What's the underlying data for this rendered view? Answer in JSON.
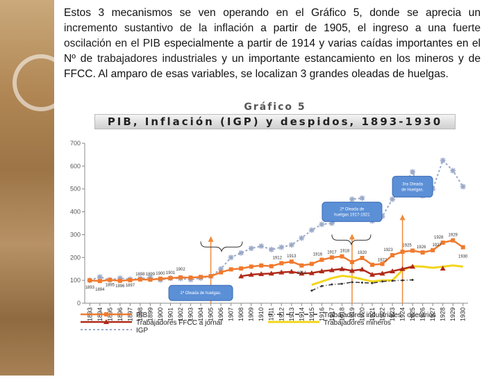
{
  "paragraph": {
    "p1": "Estos 3 mecanismos se ven operando en el Gráfico 5, donde se aprecia un ",
    "link1": "incremento sustantivo de la inflación",
    "p2": " a partir de 1905, el ingreso a una ",
    "link2": "fuerte oscilación en el PIB",
    "p3": " especialmente a partir de 1914  y varias caídas importantes en el Nº de ",
    "link3": "trabajadores industriales",
    "p4": " y un importante estancamiento en los mineros y de FFCC. Al amparo de esas variables, se localizan 3 grandes oleadas de huelgas."
  },
  "chart_data": {
    "type": "line",
    "title": "Gráfico 5",
    "subtitle": "PIB, Inflación (IGP) y despidos, 1893-1930",
    "xlabel": "",
    "ylabel": "",
    "ylim": [
      0,
      700
    ],
    "yticks": [
      0,
      100,
      200,
      300,
      400,
      500,
      600,
      700
    ],
    "categories": [
      "1893",
      "1894",
      "1895",
      "1896",
      "1897",
      "1898",
      "1899",
      "1900",
      "1901",
      "1902",
      "1903",
      "1904",
      "1905",
      "1906",
      "1907",
      "1908",
      "1909",
      "1910",
      "1911",
      "1912",
      "1913",
      "1914",
      "1915",
      "1916",
      "1917",
      "1918",
      "1919",
      "1920",
      "1921",
      "1922",
      "1923",
      "1924",
      "1925",
      "1926",
      "1927",
      "1928",
      "1929",
      "1930"
    ],
    "grid": false,
    "series": [
      {
        "name": "PIB",
        "color": "#f07a2e",
        "values": [
          100,
          97,
          102,
          98,
          101,
          104,
          103,
          107,
          110,
          113,
          112,
          115,
          118,
          135,
          148,
          152,
          160,
          165,
          162,
          175,
          182,
          165,
          172,
          190,
          200,
          205,
          180,
          198,
          168,
          172,
          210,
          225,
          230,
          222,
          232,
          265,
          275,
          245
        ]
      },
      {
        "name": "Trabajadores FFCC a jornal",
        "color": "#b02a18",
        "values": [
          null,
          null,
          null,
          null,
          null,
          null,
          null,
          null,
          null,
          null,
          null,
          null,
          null,
          null,
          null,
          118,
          125,
          128,
          130,
          135,
          138,
          130,
          132,
          140,
          145,
          150,
          142,
          148,
          125,
          130,
          140,
          150,
          160,
          null,
          null,
          152,
          null,
          null
        ]
      },
      {
        "name": "IGP",
        "color": "#9aa8c8",
        "values": [
          100,
          115,
          102,
          110,
          105,
          108,
          112,
          102,
          109,
          108,
          103,
          110,
          118,
          150,
          200,
          220,
          240,
          250,
          235,
          245,
          255,
          285,
          320,
          345,
          350,
          375,
          455,
          460,
          360,
          380,
          455,
          510,
          575,
          470,
          500,
          625,
          580,
          510
        ]
      },
      {
        "name": "Trabajadores industriales . operarios",
        "color": "#333333",
        "values": [
          null,
          null,
          null,
          null,
          null,
          null,
          null,
          null,
          null,
          null,
          null,
          null,
          null,
          null,
          null,
          null,
          null,
          null,
          null,
          null,
          null,
          null,
          55,
          75,
          82,
          85,
          92,
          90,
          88,
          95,
          98,
          100,
          102,
          null,
          null,
          null,
          null,
          null
        ]
      },
      {
        "name": "Trabajadores mineros",
        "color": "#f2d51c",
        "values": [
          null,
          null,
          null,
          null,
          null,
          null,
          null,
          null,
          null,
          null,
          null,
          null,
          null,
          null,
          null,
          null,
          null,
          null,
          null,
          null,
          null,
          null,
          80,
          95,
          110,
          120,
          115,
          105,
          95,
          100,
          100,
          145,
          162,
          160,
          155,
          160,
          165,
          160
        ]
      }
    ],
    "point_labels": [
      {
        "x": "1893",
        "y": 100,
        "text": "1893",
        "dx": 0,
        "dy": 12
      },
      {
        "x": "1894",
        "y": 97,
        "text": "1894",
        "dx": 0,
        "dy": 14
      },
      {
        "x": "1895",
        "y": 102,
        "text": "1895",
        "dx": 0,
        "dy": 9
      },
      {
        "x": "1896",
        "y": 98,
        "text": "1896",
        "dx": 0,
        "dy": 9
      },
      {
        "x": "1897",
        "y": 101,
        "text": "1897",
        "dx": 0,
        "dy": 9
      },
      {
        "x": "1898",
        "y": 104,
        "text": "1898",
        "dx": 0,
        "dy": -6
      },
      {
        "x": "1899",
        "y": 103,
        "text": "1899",
        "dx": 0,
        "dy": -6
      },
      {
        "x": "1900",
        "y": 107,
        "text": "1900",
        "dx": 0,
        "dy": -6
      },
      {
        "x": "1901",
        "y": 110,
        "text": "1901",
        "dx": 0,
        "dy": -6
      },
      {
        "x": "1902",
        "y": 113,
        "text": "1902",
        "dx": 0,
        "dy": -10
      },
      {
        "x": "1912",
        "y": 175,
        "text": "1912",
        "dx": -6,
        "dy": -6
      },
      {
        "x": "1913",
        "y": 182,
        "text": "1913",
        "dx": 0,
        "dy": -6
      },
      {
        "x": "1914",
        "y": 165,
        "text": "1914",
        "dx": 0,
        "dy": 12
      },
      {
        "x": "1916",
        "y": 190,
        "text": "1916",
        "dx": -6,
        "dy": -6
      },
      {
        "x": "1917",
        "y": 200,
        "text": "1917",
        "dx": 0,
        "dy": -6
      },
      {
        "x": "1918",
        "y": 205,
        "text": "1918",
        "dx": 4,
        "dy": -6
      },
      {
        "x": "1920",
        "y": 198,
        "text": "1920",
        "dx": 0,
        "dy": -6
      },
      {
        "x": "1922",
        "y": 172,
        "text": "1922",
        "dx": 0,
        "dy": -4
      },
      {
        "x": "1923",
        "y": 210,
        "text": "1923",
        "dx": -6,
        "dy": -6
      },
      {
        "x": "1925",
        "y": 230,
        "text": "1925",
        "dx": -8,
        "dy": -6
      },
      {
        "x": "1926",
        "y": 222,
        "text": "1926",
        "dx": -2,
        "dy": -6
      },
      {
        "x": "1927",
        "y": 232,
        "text": "1927",
        "dx": 6,
        "dy": -6
      },
      {
        "x": "1928",
        "y": 265,
        "text": "1928",
        "dx": -6,
        "dy": -6
      },
      {
        "x": "1929",
        "y": 275,
        "text": "1929",
        "dx": 0,
        "dy": -6
      },
      {
        "x": "1930",
        "y": 245,
        "text": "1930",
        "dx": 0,
        "dy": 15
      }
    ],
    "annotations": [
      {
        "text": "1ª Oleada de huelgas.",
        "x": "1904",
        "y": 45
      },
      {
        "text": "2ª Oleada de huelgas 1917-1921",
        "x": "1919",
        "y": 400
      },
      {
        "text": "3ra Oleada de Huelgas.",
        "x": "1925",
        "y": 510
      }
    ],
    "legend": [
      {
        "name": "PIB",
        "col": 0
      },
      {
        "name": "Trabajadores FFCC a jornal",
        "col": 0
      },
      {
        "name": "IGP",
        "col": 0
      },
      {
        "name": "Trabajadores industriales . operarios",
        "col": 1
      },
      {
        "name": "Trabajadores mineros",
        "col": 1
      }
    ]
  }
}
